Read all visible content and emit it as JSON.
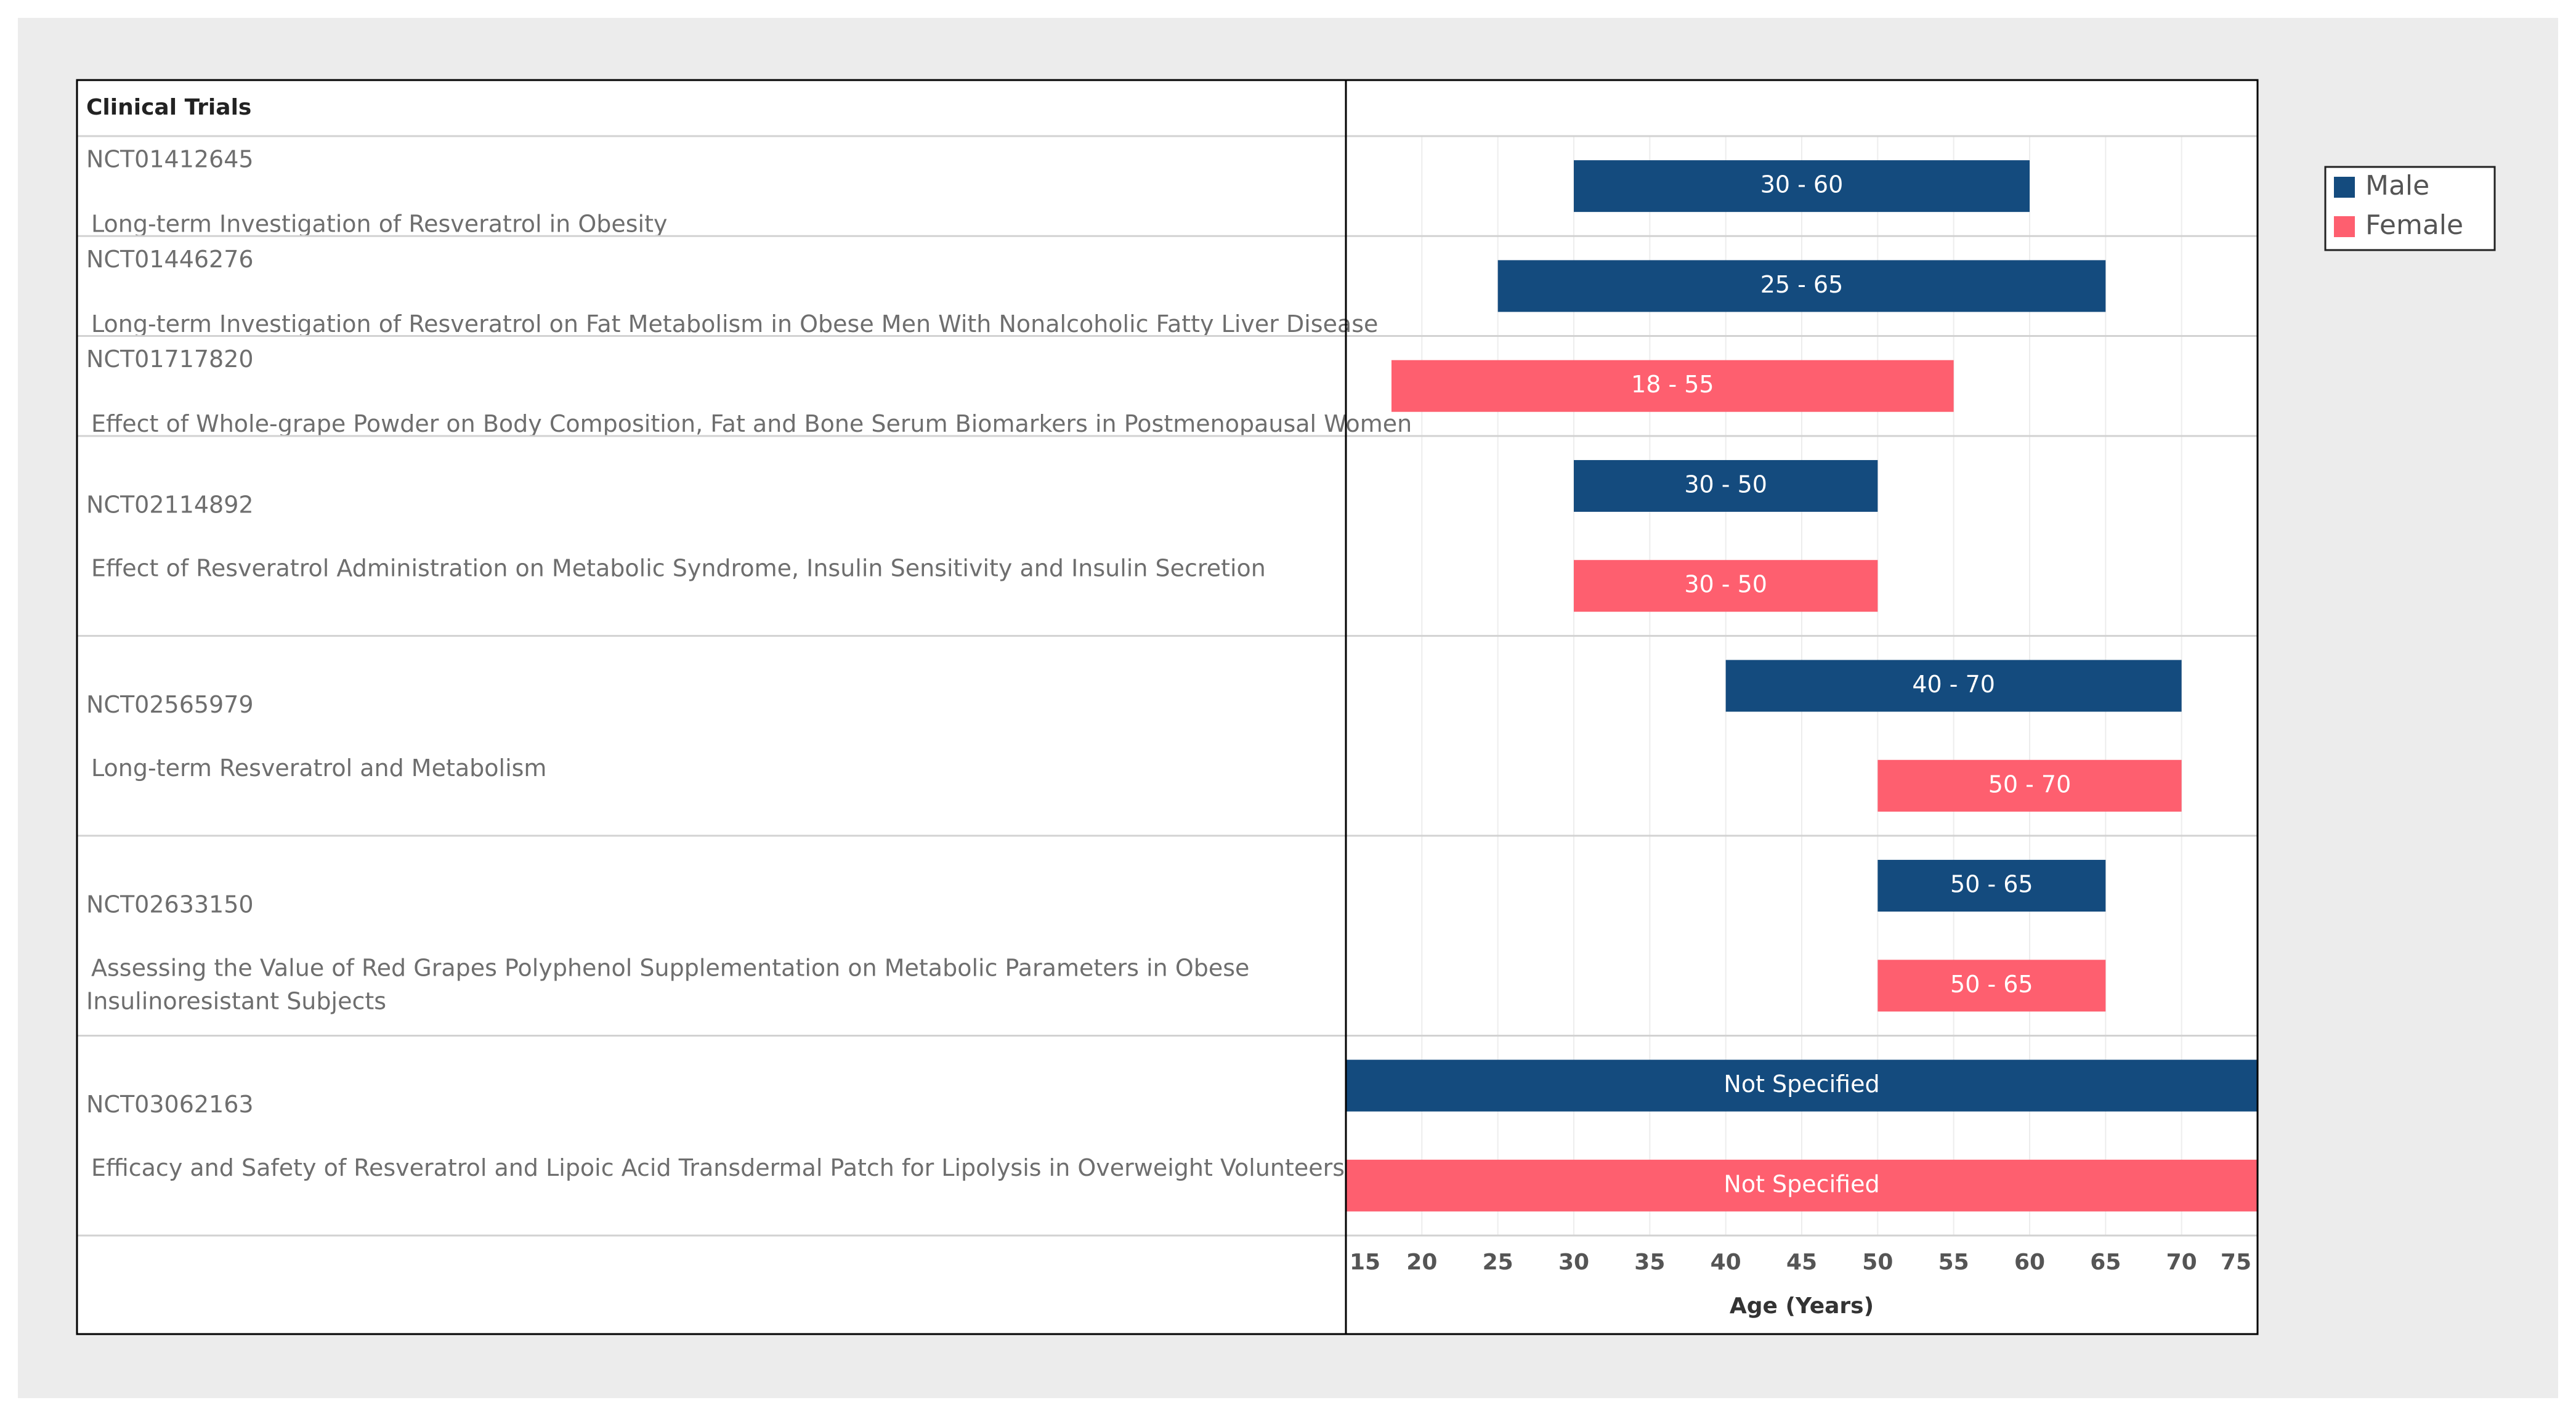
{
  "chart_data": {
    "type": "bar",
    "orientation": "horizontal-range",
    "table_header": "Clinical Trials",
    "xlabel": "Age (Years)",
    "xlim": [
      15,
      75
    ],
    "ticks": [
      "15",
      "20",
      "25",
      "30",
      "35",
      "40",
      "45",
      "50",
      "55",
      "60",
      "65",
      "70",
      "75"
    ],
    "legend": [
      {
        "name": "Male",
        "color": "#144b7e"
      },
      {
        "name": "Female",
        "color": "#fe5f6f"
      }
    ],
    "rows": [
      {
        "id": "NCT01412645",
        "title": [
          "Long-term Investigation of Resveratrol in Obesity"
        ],
        "bars": [
          {
            "series": "Male",
            "start": 30,
            "end": 60,
            "label": "30 - 60"
          }
        ]
      },
      {
        "id": "NCT01446276",
        "title": [
          "Long-term Investigation of Resveratrol on Fat Metabolism in Obese Men With Nonalcoholic Fatty Liver Disease"
        ],
        "bars": [
          {
            "series": "Male",
            "start": 25,
            "end": 65,
            "label": "25 - 65"
          }
        ]
      },
      {
        "id": "NCT01717820",
        "title": [
          "Effect of Whole-grape Powder on Body Composition, Fat and Bone Serum Biomarkers in Postmenopausal Women"
        ],
        "bars": [
          {
            "series": "Female",
            "start": 18,
            "end": 55,
            "label": "18 - 55"
          }
        ]
      },
      {
        "id": "NCT02114892",
        "title": [
          "Effect of Resveratrol Administration on Metabolic Syndrome, Insulin Sensitivity and Insulin Secretion"
        ],
        "bars": [
          {
            "series": "Male",
            "start": 30,
            "end": 50,
            "label": "30 - 50"
          },
          {
            "series": "Female",
            "start": 30,
            "end": 50,
            "label": "30 - 50"
          }
        ]
      },
      {
        "id": "NCT02565979",
        "title": [
          "Long-term Resveratrol and Metabolism"
        ],
        "bars": [
          {
            "series": "Male",
            "start": 40,
            "end": 70,
            "label": "40 - 70"
          },
          {
            "series": "Female",
            "start": 50,
            "end": 70,
            "label": "50 - 70"
          }
        ]
      },
      {
        "id": "NCT02633150",
        "title": [
          "Assessing the Value of Red Grapes Polyphenol Supplementation on Metabolic Parameters in Obese",
          "Insulinoresistant Subjects"
        ],
        "bars": [
          {
            "series": "Male",
            "start": 50,
            "end": 65,
            "label": "50 - 65"
          },
          {
            "series": "Female",
            "start": 50,
            "end": 65,
            "label": "50 - 65"
          }
        ]
      },
      {
        "id": "NCT03062163",
        "title": [
          "Efficacy and Safety of Resveratrol and Lipoic Acid Transdermal Patch for Lipolysis in Overweight Volunteers"
        ],
        "bars": [
          {
            "series": "Male",
            "start": 15,
            "end": 75,
            "label": "Not Specified"
          },
          {
            "series": "Female",
            "start": 15,
            "end": 75,
            "label": "Not Specified"
          }
        ]
      }
    ]
  }
}
